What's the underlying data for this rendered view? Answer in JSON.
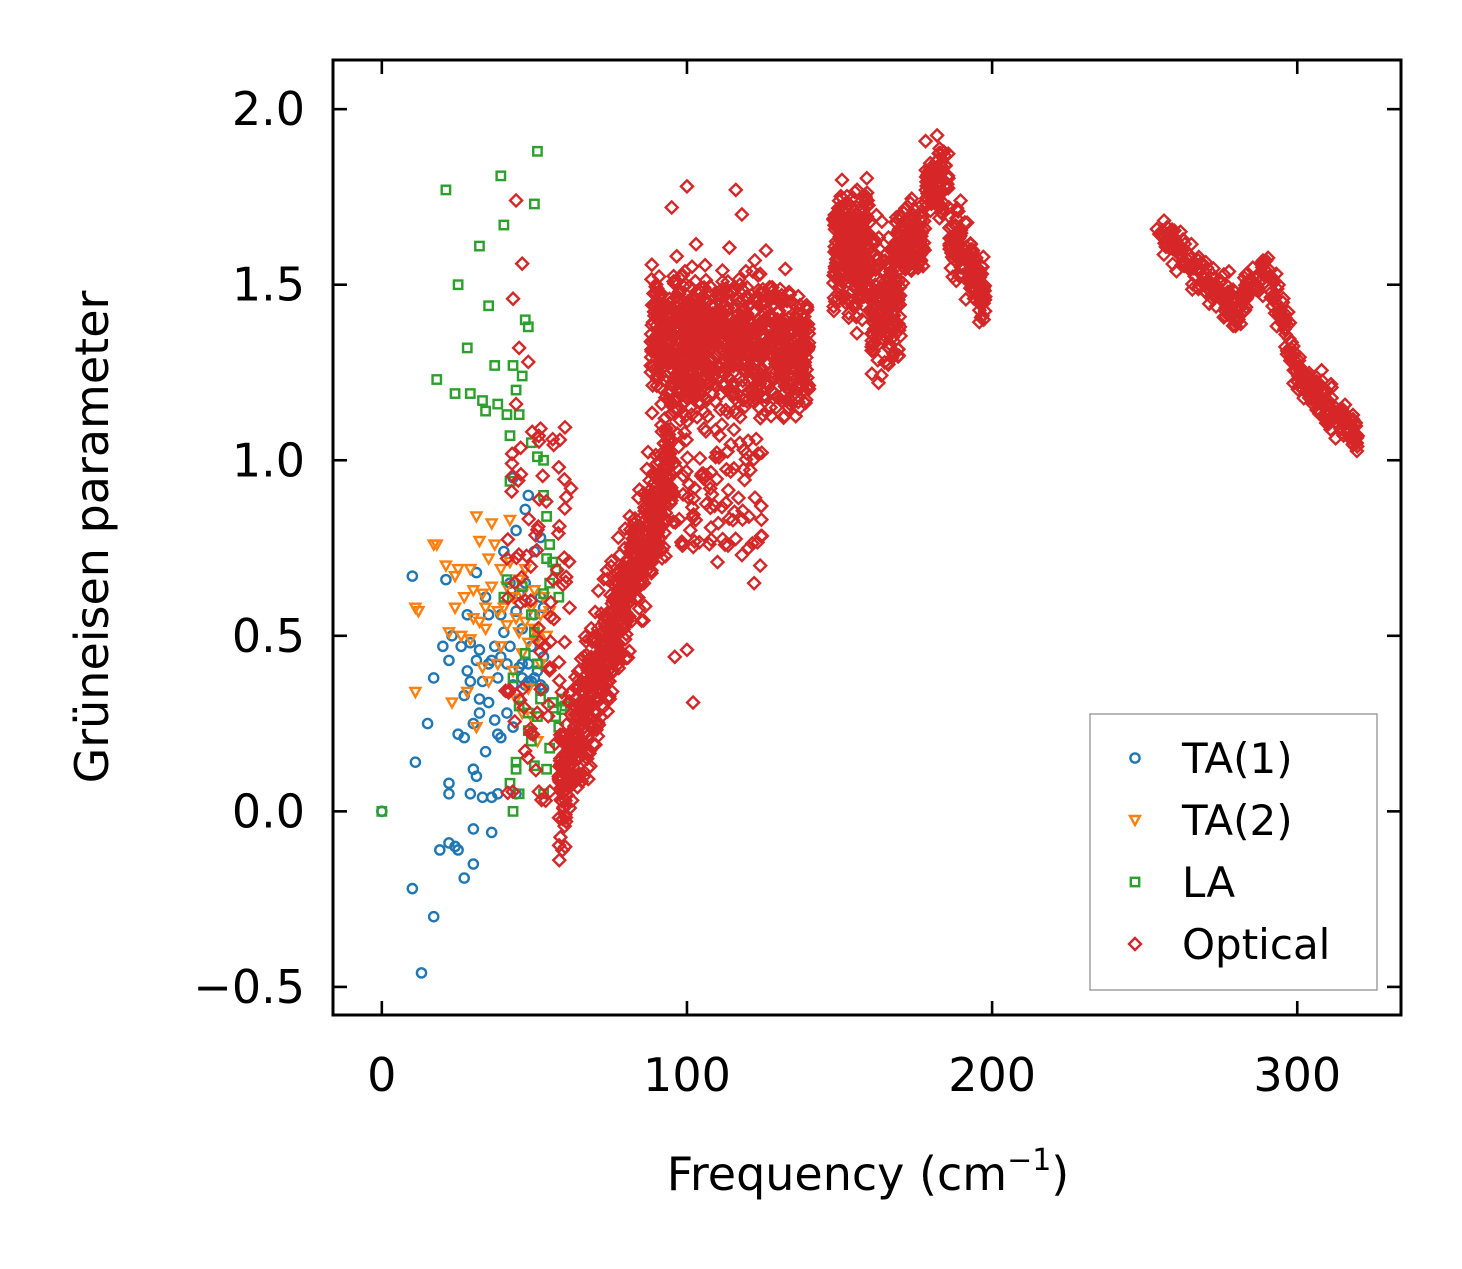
{
  "chart_data": {
    "type": "scatter",
    "title": "",
    "xlabel": "Frequency (cm",
    "xlabel_exponent": "−1",
    "xlabel_close": ")",
    "ylabel": "Grüneisen parameter",
    "xlim": [
      -16,
      334
    ],
    "ylim": [
      -0.58,
      2.14
    ],
    "xticks": [
      0,
      100,
      200,
      300
    ],
    "xtick_labels": [
      "0",
      "100",
      "200",
      "300"
    ],
    "yticks": [
      -0.5,
      0.0,
      0.5,
      1.0,
      1.5,
      2.0
    ],
    "ytick_labels": [
      "−0.5",
      "0.0",
      "0.5",
      "1.0",
      "1.5",
      "2.0"
    ],
    "legend_position": "bottom-right",
    "series": [
      {
        "name": "TA(1)",
        "color": "#1f77b4",
        "marker": "circle",
        "points": [
          [
            0,
            0.0
          ],
          [
            10,
            0.67
          ],
          [
            11,
            0.14
          ],
          [
            13,
            -0.46
          ],
          [
            15,
            0.25
          ],
          [
            17,
            0.38
          ],
          [
            17,
            -0.3
          ],
          [
            10,
            -0.22
          ],
          [
            19,
            -0.11
          ],
          [
            20,
            0.47
          ],
          [
            21,
            0.66
          ],
          [
            22,
            0.08
          ],
          [
            22,
            0.43
          ],
          [
            22,
            0.05
          ],
          [
            22,
            -0.09
          ],
          [
            23,
            0.5
          ],
          [
            24,
            -0.1
          ],
          [
            25,
            -0.11
          ],
          [
            25,
            0.22
          ],
          [
            26,
            0.47
          ],
          [
            27,
            0.21
          ],
          [
            27,
            0.33
          ],
          [
            27,
            -0.19
          ],
          [
            28,
            0.4
          ],
          [
            28,
            0.56
          ],
          [
            29,
            0.05
          ],
          [
            29,
            0.37
          ],
          [
            29,
            0.48
          ],
          [
            30,
            0.12
          ],
          [
            30,
            -0.05
          ],
          [
            30,
            0.25
          ],
          [
            30,
            -0.15
          ],
          [
            31,
            0.1
          ],
          [
            31,
            0.43
          ],
          [
            31,
            0.68
          ],
          [
            32,
            0.32
          ],
          [
            32,
            0.46
          ],
          [
            32,
            0.28
          ],
          [
            33,
            0.37
          ],
          [
            33,
            0.04
          ],
          [
            34,
            0.61
          ],
          [
            34,
            0.17
          ],
          [
            35,
            0.42
          ],
          [
            35,
            0.56
          ],
          [
            35,
            0.31
          ],
          [
            36,
            -0.06
          ],
          [
            36,
            0.04
          ],
          [
            36,
            0.43
          ],
          [
            37,
            0.26
          ],
          [
            37,
            0.47
          ],
          [
            38,
            0.05
          ],
          [
            38,
            0.22
          ],
          [
            38,
            0.38
          ],
          [
            39,
            0.44
          ],
          [
            39,
            0.56
          ],
          [
            39,
            0.21
          ],
          [
            40,
            0.74
          ],
          [
            40,
            0.51
          ],
          [
            41,
            0.28
          ],
          [
            41,
            0.42
          ],
          [
            41,
            0.34
          ],
          [
            42,
            0.65
          ],
          [
            42,
            0.47
          ],
          [
            43,
            0.36
          ],
          [
            43,
            0.95
          ],
          [
            43,
            0.24
          ],
          [
            44,
            0.05
          ],
          [
            44,
            0.8
          ],
          [
            44,
            0.57
          ],
          [
            45,
            0.41
          ],
          [
            45,
            0.32
          ],
          [
            45,
            0.62
          ],
          [
            46,
            0.42
          ],
          [
            46,
            0.38
          ],
          [
            46,
            0.52
          ],
          [
            47,
            0.36
          ],
          [
            47,
            0.65
          ],
          [
            47,
            0.86
          ],
          [
            48,
            0.9
          ],
          [
            48,
            0.37
          ],
          [
            48,
            0.42
          ],
          [
            49,
            0.6
          ],
          [
            49,
            0.37
          ],
          [
            49,
            0.47
          ],
          [
            50,
            0.38
          ],
          [
            50,
            0.56
          ],
          [
            50,
            0.74
          ],
          [
            51,
            0.5
          ],
          [
            51,
            0.4
          ],
          [
            52,
            0.36
          ],
          [
            52,
            0.61
          ],
          [
            52,
            0.78
          ],
          [
            53,
            0.44
          ],
          [
            53,
            0.58
          ],
          [
            53,
            0.35
          ]
        ]
      },
      {
        "name": "TA(2)",
        "color": "#ff7f0e",
        "marker": "triangle-down",
        "points": [
          [
            11,
            0.34
          ],
          [
            11,
            0.58
          ],
          [
            12,
            0.57
          ],
          [
            17,
            0.76
          ],
          [
            18,
            0.76
          ],
          [
            21,
            0.7
          ],
          [
            22,
            0.51
          ],
          [
            23,
            0.31
          ],
          [
            24,
            0.67
          ],
          [
            24,
            0.58
          ],
          [
            25,
            0.69
          ],
          [
            26,
            0.5
          ],
          [
            27,
            0.61
          ],
          [
            28,
            0.34
          ],
          [
            29,
            0.69
          ],
          [
            29,
            0.49
          ],
          [
            30,
            0.55
          ],
          [
            30,
            0.63
          ],
          [
            31,
            0.24
          ],
          [
            31,
            0.84
          ],
          [
            32,
            0.54
          ],
          [
            32,
            0.77
          ],
          [
            33,
            0.62
          ],
          [
            33,
            0.41
          ],
          [
            34,
            0.58
          ],
          [
            34,
            0.52
          ],
          [
            35,
            0.72
          ],
          [
            35,
            0.37
          ],
          [
            36,
            0.82
          ],
          [
            36,
            0.64
          ],
          [
            37,
            0.76
          ],
          [
            38,
            0.57
          ],
          [
            38,
            0.42
          ],
          [
            39,
            0.69
          ],
          [
            39,
            0.47
          ],
          [
            40,
            0.58
          ],
          [
            41,
            0.64
          ],
          [
            41,
            0.53
          ],
          [
            42,
            0.83
          ],
          [
            42,
            0.71
          ],
          [
            43,
            0.61
          ],
          [
            43,
            0.4
          ],
          [
            44,
            0.55
          ],
          [
            44,
            0.32
          ],
          [
            45,
            0.66
          ],
          [
            45,
            0.51
          ],
          [
            46,
            0.28
          ],
          [
            46,
            0.62
          ],
          [
            46,
            0.45
          ],
          [
            47,
            0.54
          ],
          [
            47,
            0.69
          ],
          [
            48,
            0.35
          ],
          [
            48,
            0.48
          ],
          [
            49,
            0.58
          ],
          [
            49,
            0.27
          ],
          [
            50,
            0.52
          ],
          [
            50,
            0.63
          ],
          [
            51,
            0.2
          ],
          [
            51,
            0.49
          ],
          [
            52,
            0.56
          ],
          [
            52,
            0.42
          ],
          [
            53,
            0.61
          ],
          [
            54,
            0.5
          ],
          [
            55,
            0.57
          ]
        ]
      },
      {
        "name": "LA",
        "color": "#2ca02c",
        "marker": "square",
        "points": [
          [
            0,
            0.0
          ],
          [
            21,
            1.77
          ],
          [
            25,
            1.5
          ],
          [
            28,
            1.32
          ],
          [
            18,
            1.23
          ],
          [
            24,
            1.19
          ],
          [
            32,
            1.61
          ],
          [
            35,
            1.44
          ],
          [
            37,
            1.27
          ],
          [
            38,
            1.16
          ],
          [
            39,
            1.81
          ],
          [
            40,
            1.67
          ],
          [
            41,
            1.13
          ],
          [
            42,
            1.07
          ],
          [
            43,
            1.27
          ],
          [
            44,
            1.2
          ],
          [
            45,
            1.13
          ],
          [
            46,
            1.24
          ],
          [
            47,
            1.4
          ],
          [
            48,
            1.38
          ],
          [
            49,
            1.05
          ],
          [
            50,
            1.73
          ],
          [
            51,
            1.88
          ],
          [
            51,
            1.01
          ],
          [
            53,
            1.0
          ],
          [
            53,
            0.9
          ],
          [
            54,
            0.84
          ],
          [
            55,
            0.76
          ],
          [
            33,
            1.17
          ],
          [
            29,
            1.19
          ],
          [
            34,
            1.14
          ],
          [
            42,
            0.94
          ],
          [
            41,
            0.66
          ],
          [
            40,
            0.61
          ],
          [
            43,
            0.38
          ],
          [
            44,
            0.12
          ],
          [
            45,
            0.05
          ],
          [
            46,
            0.64
          ],
          [
            47,
            0.45
          ],
          [
            48,
            0.28
          ],
          [
            49,
            0.56
          ],
          [
            50,
            0.51
          ],
          [
            51,
            0.27
          ],
          [
            52,
            0.32
          ],
          [
            53,
            0.62
          ],
          [
            54,
            0.72
          ],
          [
            55,
            0.65
          ],
          [
            56,
            0.71
          ],
          [
            57,
            0.69
          ],
          [
            58,
            0.61
          ],
          [
            59,
            0.29
          ],
          [
            59,
            0.32
          ],
          [
            60,
            0.22
          ],
          [
            60,
            0.3
          ],
          [
            58,
            0.24
          ],
          [
            57,
            0.27
          ],
          [
            56,
            0.31
          ],
          [
            55,
            0.18
          ],
          [
            54,
            0.12
          ],
          [
            53,
            0.05
          ],
          [
            52,
            0.35
          ],
          [
            51,
            0.42
          ],
          [
            50,
            0.13
          ],
          [
            49,
            0.2
          ],
          [
            48,
            0.23
          ],
          [
            43,
            0.0
          ],
          [
            42,
            0.08
          ],
          [
            44,
            0.14
          ],
          [
            45,
            0.3
          ]
        ]
      },
      {
        "name": "Optical",
        "color": "#d62728",
        "marker": "diamond",
        "points": "generated"
      }
    ]
  }
}
